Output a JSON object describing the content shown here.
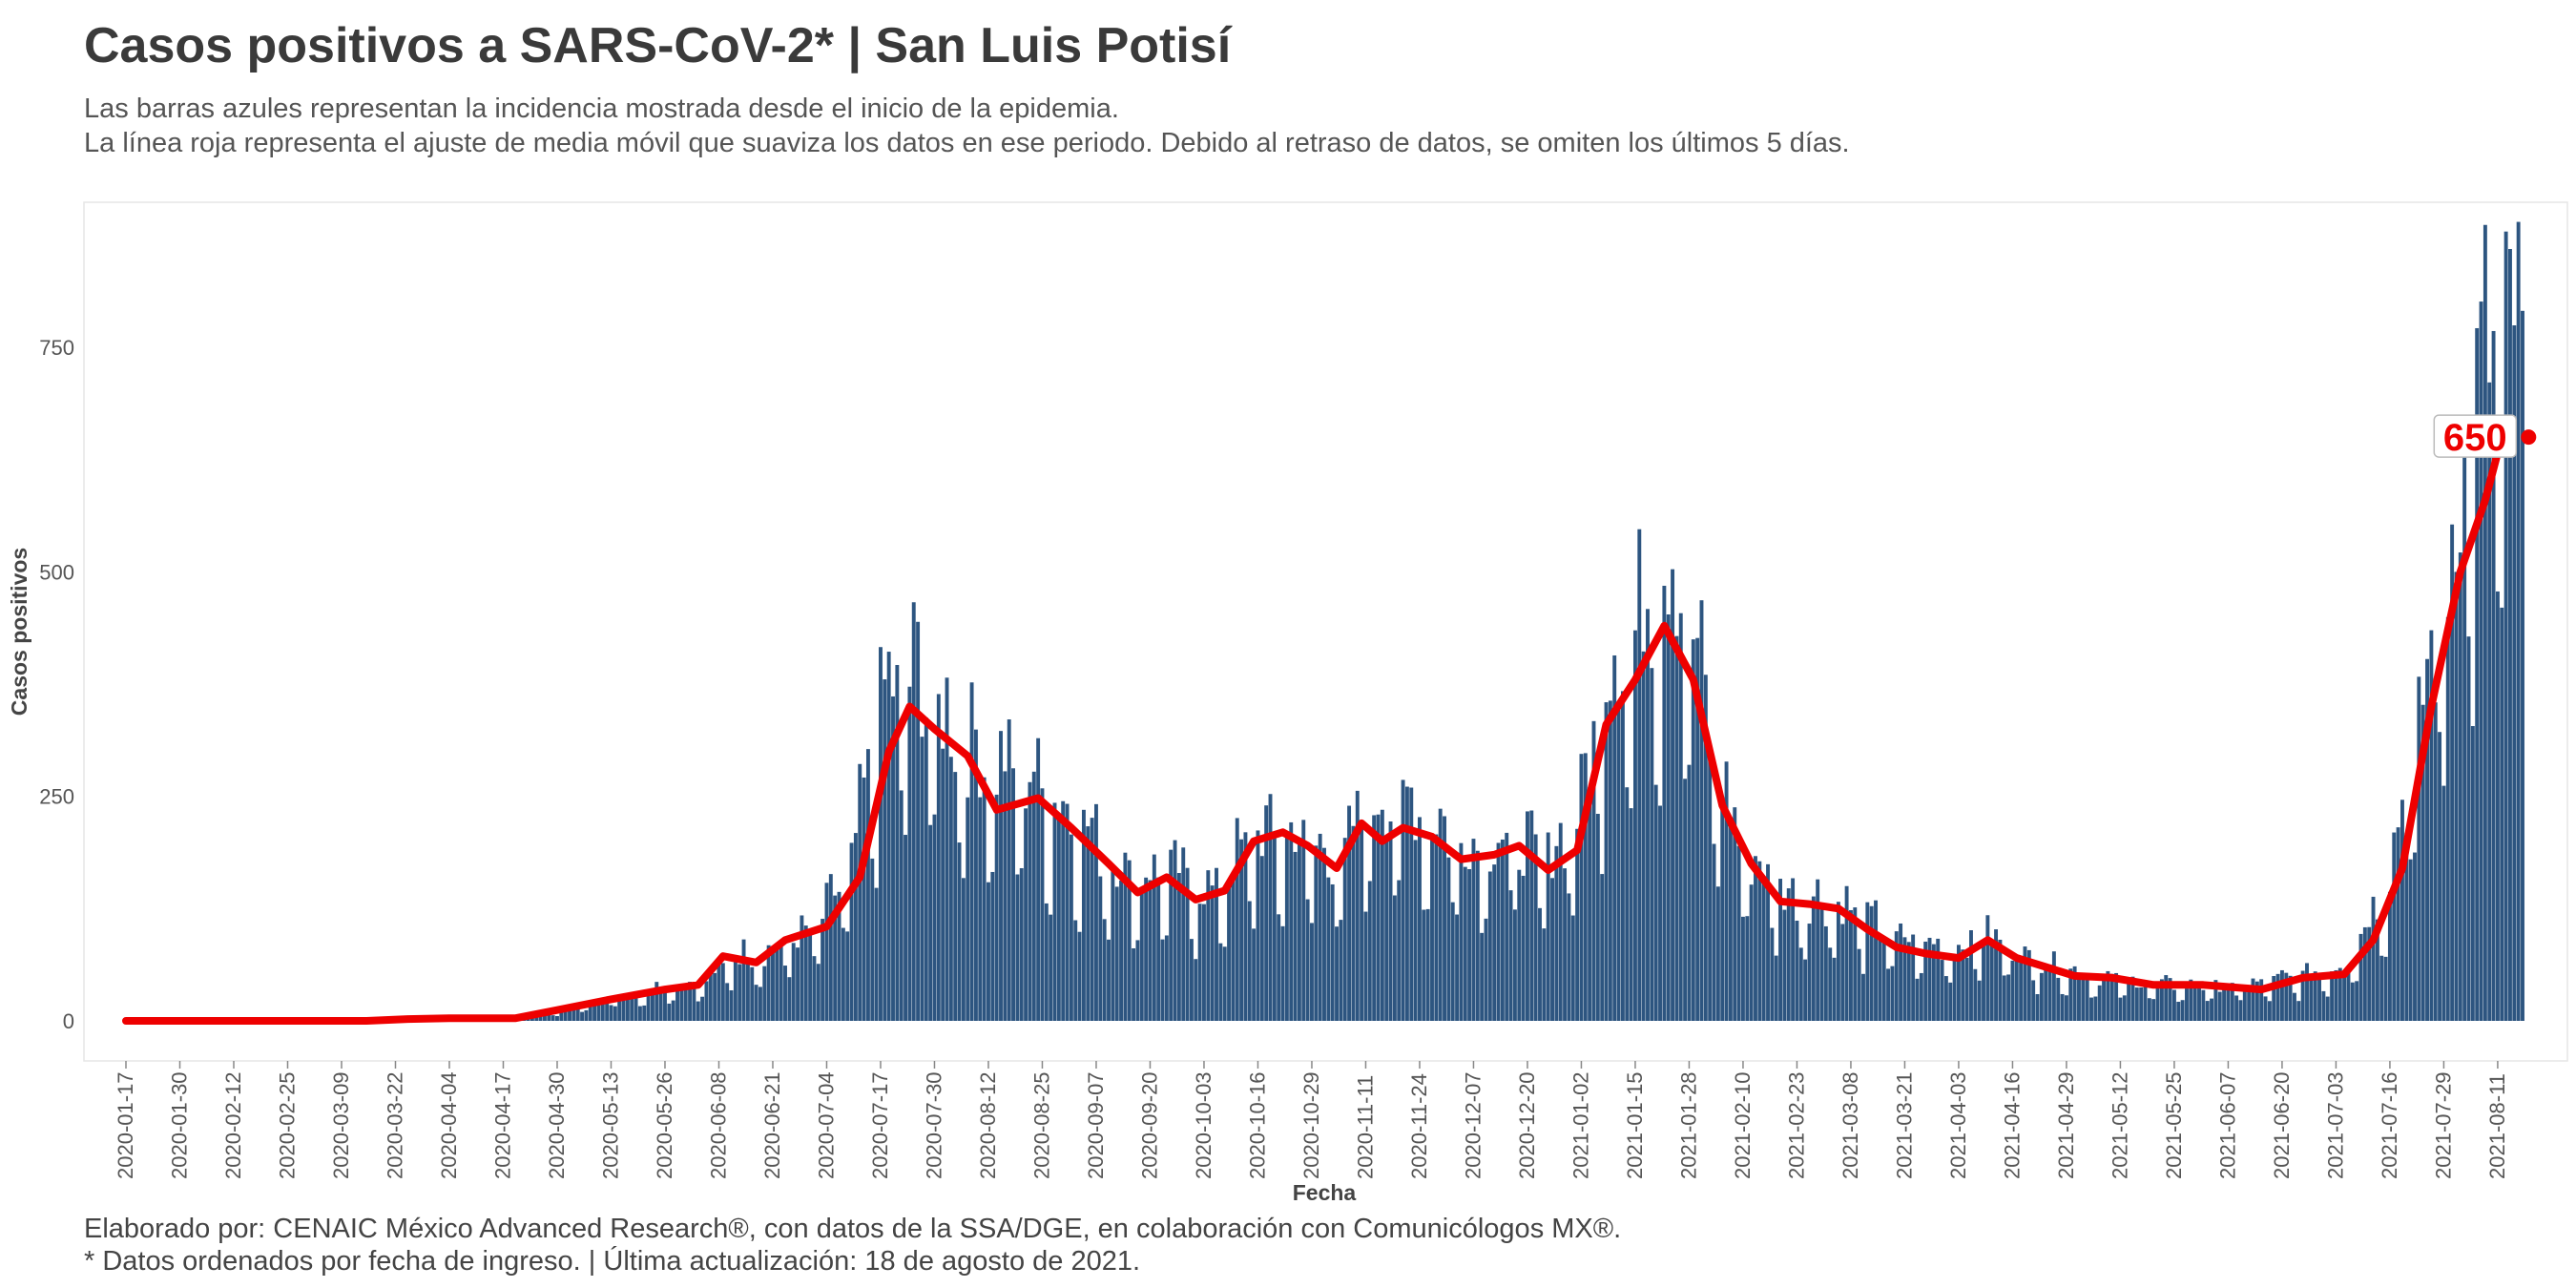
{
  "header": {
    "title": "Casos positivos a SARS-CoV-2* | San Luis Potisí",
    "subtitle_1": "Las barras azules representan la incidencia mostrada desde el inicio de la epidemia.",
    "subtitle_2": "La línea roja representa el ajuste de media móvil que suaviza los datos en ese periodo. Debido al retraso de datos, se omiten los últimos 5 días."
  },
  "footer": {
    "caption_1": "Elaborado por: CENAIC México Advanced Research®, con datos de la SSA/DGE, en colaboración con Comunicólogos MX®.",
    "caption_2": "* Datos ordenados por fecha de ingreso. | Última actualización: 18 de agosto de 2021."
  },
  "chart_data": {
    "type": "bar",
    "xlabel": "Fecha",
    "ylabel": "Casos positivos",
    "x_start": "2020-01-17",
    "x_end": "2021-08-17",
    "ylim": [
      -40,
      870
    ],
    "y_ticks": [
      0,
      250,
      500,
      750
    ],
    "x_ticks": [
      "2020-01-17",
      "2020-01-30",
      "2020-02-12",
      "2020-02-25",
      "2020-03-09",
      "2020-03-22",
      "2020-04-04",
      "2020-04-17",
      "2020-04-30",
      "2020-05-13",
      "2020-05-26",
      "2020-06-08",
      "2020-06-21",
      "2020-07-04",
      "2020-07-17",
      "2020-07-30",
      "2020-08-12",
      "2020-08-25",
      "2020-09-07",
      "2020-09-20",
      "2020-10-03",
      "2020-10-16",
      "2020-10-29",
      "2020-11-11",
      "2020-11-24",
      "2020-12-07",
      "2020-12-20",
      "2021-01-02",
      "2021-01-15",
      "2021-01-28",
      "2021-02-10",
      "2021-02-23",
      "2021-03-08",
      "2021-03-21",
      "2021-04-03",
      "2021-04-16",
      "2021-04-29",
      "2021-05-12",
      "2021-05-25",
      "2021-06-07",
      "2021-06-20",
      "2021-07-03",
      "2021-07-16",
      "2021-07-29",
      "2021-08-11"
    ],
    "bars": {
      "name": "Casos positivos",
      "color": "#2d5580",
      "weekly_pattern": [
        1.0,
        1.05,
        1.08,
        1.04,
        0.98,
        0.62,
        0.55
      ],
      "level_points": [
        [
          "2020-01-17",
          0
        ],
        [
          "2020-03-15",
          0
        ],
        [
          "2020-03-25",
          2
        ],
        [
          "2020-04-20",
          3
        ],
        [
          "2020-04-30",
          12
        ],
        [
          "2020-05-13",
          25
        ],
        [
          "2020-05-26",
          38
        ],
        [
          "2020-06-05",
          45
        ],
        [
          "2020-06-12",
          72
        ],
        [
          "2020-06-19",
          75
        ],
        [
          "2020-07-01",
          100
        ],
        [
          "2020-07-10",
          170
        ],
        [
          "2020-07-17",
          350
        ],
        [
          "2020-07-25",
          385
        ],
        [
          "2020-08-01",
          335
        ],
        [
          "2020-08-12",
          285
        ],
        [
          "2020-08-22",
          270
        ],
        [
          "2020-09-05",
          210
        ],
        [
          "2020-09-15",
          160
        ],
        [
          "2020-09-25",
          165
        ],
        [
          "2020-10-05",
          140
        ],
        [
          "2020-10-15",
          205
        ],
        [
          "2020-10-26",
          205
        ],
        [
          "2020-11-05",
          175
        ],
        [
          "2020-11-12",
          245
        ],
        [
          "2020-11-24",
          235
        ],
        [
          "2020-12-05",
          195
        ],
        [
          "2020-12-15",
          200
        ],
        [
          "2020-12-25",
          180
        ],
        [
          "2021-01-02",
          240
        ],
        [
          "2021-01-08",
          395
        ],
        [
          "2021-01-15",
          430
        ],
        [
          "2021-01-22",
          520
        ],
        [
          "2021-01-28",
          460
        ],
        [
          "2021-02-03",
          290
        ],
        [
          "2021-02-10",
          190
        ],
        [
          "2021-02-20",
          140
        ],
        [
          "2021-03-05",
          130
        ],
        [
          "2021-03-20",
          90
        ],
        [
          "2021-04-03",
          80
        ],
        [
          "2021-04-10",
          95
        ],
        [
          "2021-04-20",
          70
        ],
        [
          "2021-05-05",
          50
        ],
        [
          "2021-05-20",
          40
        ],
        [
          "2021-06-10",
          38
        ],
        [
          "2021-06-25",
          50
        ],
        [
          "2021-07-05",
          62
        ],
        [
          "2021-07-15",
          150
        ],
        [
          "2021-07-22",
          300
        ],
        [
          "2021-07-29",
          470
        ],
        [
          "2021-08-05",
          680
        ],
        [
          "2021-08-12",
          760
        ],
        [
          "2021-08-17",
          740
        ]
      ]
    },
    "series": [
      {
        "name": "Media móvil",
        "color": "#ee0000",
        "points": [
          [
            "2020-01-17",
            0
          ],
          [
            "2020-03-15",
            0
          ],
          [
            "2020-03-25",
            2
          ],
          [
            "2020-04-04",
            3
          ],
          [
            "2020-04-20",
            3
          ],
          [
            "2020-04-30",
            12
          ],
          [
            "2020-05-13",
            24
          ],
          [
            "2020-05-26",
            35
          ],
          [
            "2020-06-03",
            40
          ],
          [
            "2020-06-09",
            72
          ],
          [
            "2020-06-17",
            65
          ],
          [
            "2020-06-24",
            90
          ],
          [
            "2020-07-04",
            105
          ],
          [
            "2020-07-12",
            160
          ],
          [
            "2020-07-19",
            300
          ],
          [
            "2020-07-24",
            350
          ],
          [
            "2020-07-30",
            325
          ],
          [
            "2020-08-07",
            295
          ],
          [
            "2020-08-14",
            235
          ],
          [
            "2020-08-24",
            248
          ],
          [
            "2020-09-01",
            215
          ],
          [
            "2020-09-10",
            175
          ],
          [
            "2020-09-17",
            143
          ],
          [
            "2020-09-24",
            160
          ],
          [
            "2020-10-01",
            135
          ],
          [
            "2020-10-08",
            145
          ],
          [
            "2020-10-15",
            200
          ],
          [
            "2020-10-22",
            210
          ],
          [
            "2020-10-28",
            195
          ],
          [
            "2020-11-04",
            170
          ],
          [
            "2020-11-10",
            220
          ],
          [
            "2020-11-15",
            200
          ],
          [
            "2020-11-20",
            215
          ],
          [
            "2020-11-27",
            205
          ],
          [
            "2020-12-04",
            180
          ],
          [
            "2020-12-12",
            185
          ],
          [
            "2020-12-18",
            195
          ],
          [
            "2020-12-25",
            168
          ],
          [
            "2021-01-01",
            190
          ],
          [
            "2021-01-08",
            330
          ],
          [
            "2021-01-15",
            380
          ],
          [
            "2021-01-22",
            440
          ],
          [
            "2021-01-29",
            380
          ],
          [
            "2021-02-05",
            240
          ],
          [
            "2021-02-12",
            175
          ],
          [
            "2021-02-19",
            133
          ],
          [
            "2021-02-26",
            130
          ],
          [
            "2021-03-05",
            125
          ],
          [
            "2021-03-12",
            102
          ],
          [
            "2021-03-19",
            82
          ],
          [
            "2021-03-26",
            75
          ],
          [
            "2021-04-03",
            70
          ],
          [
            "2021-04-10",
            90
          ],
          [
            "2021-04-17",
            70
          ],
          [
            "2021-04-24",
            60
          ],
          [
            "2021-05-01",
            50
          ],
          [
            "2021-05-10",
            48
          ],
          [
            "2021-05-20",
            40
          ],
          [
            "2021-06-01",
            40
          ],
          [
            "2021-06-15",
            35
          ],
          [
            "2021-06-25",
            48
          ],
          [
            "2021-07-05",
            52
          ],
          [
            "2021-07-12",
            90
          ],
          [
            "2021-07-19",
            170
          ],
          [
            "2021-07-26",
            350
          ],
          [
            "2021-08-02",
            500
          ],
          [
            "2021-08-08",
            580
          ],
          [
            "2021-08-12",
            650
          ]
        ]
      }
    ],
    "end_label": "650",
    "end_value": 650
  }
}
